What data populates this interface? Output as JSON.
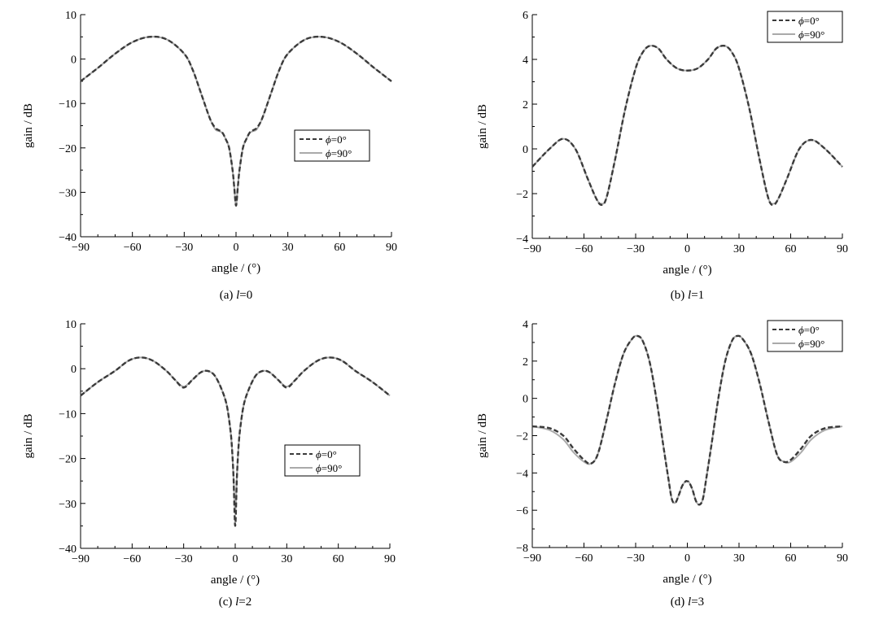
{
  "chart_data": [
    {
      "type": "line",
      "caption": {
        "prefix": "(a) ",
        "var": "l",
        "rest": "=0"
      },
      "xlabel": "angle / (°)",
      "ylabel": "gain / dB",
      "xlim": [
        -90,
        90
      ],
      "ylim": [
        -40,
        10
      ],
      "xticks": [
        -90,
        -60,
        -30,
        0,
        30,
        60,
        90
      ],
      "yticks": [
        -40,
        -30,
        -20,
        -10,
        0,
        10
      ],
      "tick_labels_x": [
        "−90",
        "−60",
        "−30",
        "0",
        "30",
        "60",
        "90"
      ],
      "tick_labels_y": [
        "−40",
        "−30",
        "−20",
        "−10",
        "0",
        "10"
      ],
      "legend": {
        "placement": "center-right",
        "entries": [
          {
            "sym": "ϕ",
            "rest": "=0°"
          },
          {
            "sym": "ϕ",
            "rest": "=90°"
          }
        ]
      },
      "series": [
        {
          "color": "#3a3a3a",
          "style": "dashed",
          "x": [
            -90,
            -80,
            -70,
            -60,
            -50,
            -40,
            -30,
            -25,
            -20,
            -15,
            -12,
            -10,
            -8,
            -6,
            -4,
            -2,
            -1,
            0,
            1,
            2,
            4,
            6,
            8,
            10,
            12,
            15,
            20,
            25,
            30,
            40,
            50,
            60,
            70,
            80,
            90
          ],
          "y": [
            -5,
            -2,
            1.2,
            3.8,
            5,
            4.4,
            1.2,
            -2.5,
            -8,
            -13.5,
            -15.5,
            -16,
            -16.5,
            -18,
            -20,
            -25,
            -29,
            -33,
            -29,
            -25,
            -20,
            -18,
            -16.5,
            -16,
            -15.5,
            -13.5,
            -8,
            -2.5,
            1.2,
            4.4,
            5,
            3.8,
            1.2,
            -2,
            -5
          ]
        },
        {
          "color": "#aaaaaa",
          "style": "solid",
          "x": [
            -90,
            -80,
            -70,
            -60,
            -50,
            -40,
            -30,
            -25,
            -20,
            -15,
            -12,
            -10,
            -8,
            -6,
            -4,
            -2,
            -1,
            0,
            1,
            2,
            4,
            6,
            8,
            10,
            12,
            15,
            20,
            25,
            30,
            40,
            50,
            60,
            70,
            80,
            90
          ],
          "y": [
            -5,
            -2,
            1.2,
            3.8,
            5,
            4.4,
            1.2,
            -2.5,
            -8,
            -13.5,
            -15.8,
            -16.2,
            -16.6,
            -18,
            -20,
            -25,
            -29,
            -33,
            -29,
            -25,
            -20,
            -18,
            -16.6,
            -16.2,
            -15.8,
            -13.5,
            -8,
            -2.5,
            1.2,
            4.4,
            5,
            3.8,
            1.2,
            -2,
            -5
          ]
        }
      ]
    },
    {
      "type": "line",
      "caption": {
        "prefix": "(b) ",
        "var": "l",
        "rest": "=1"
      },
      "xlabel": "angle / (°)",
      "ylabel": "gain / dB",
      "xlim": [
        -90,
        90
      ],
      "ylim": [
        -4,
        6
      ],
      "xticks": [
        -90,
        -60,
        -30,
        0,
        30,
        60,
        90
      ],
      "yticks": [
        -4,
        -2,
        0,
        2,
        4,
        6
      ],
      "tick_labels_x": [
        "−90",
        "−60",
        "−30",
        "0",
        "30",
        "60",
        "90"
      ],
      "tick_labels_y": [
        "−4",
        "−2",
        "0",
        "2",
        "4",
        "6"
      ],
      "legend": {
        "placement": "top-right",
        "entries": [
          {
            "sym": "ϕ",
            "rest": "=0°"
          },
          {
            "sym": "ϕ",
            "rest": "=90°"
          }
        ]
      },
      "series": [
        {
          "color": "#3a3a3a",
          "style": "dashed",
          "x": [
            -90,
            -80,
            -72,
            -65,
            -58,
            -53,
            -50,
            -47,
            -42,
            -36,
            -30,
            -26,
            -22,
            -17,
            -12,
            -6,
            0,
            6,
            12,
            17,
            22,
            26,
            30,
            36,
            42,
            47,
            50,
            53,
            58,
            65,
            72,
            80,
            90
          ],
          "y": [
            -0.8,
            0,
            0.45,
            0,
            -1.3,
            -2.2,
            -2.5,
            -2.2,
            -0.5,
            1.8,
            3.6,
            4.3,
            4.6,
            4.5,
            4.0,
            3.6,
            3.5,
            3.6,
            4.0,
            4.5,
            4.6,
            4.3,
            3.6,
            1.8,
            -0.5,
            -2.2,
            -2.5,
            -2.2,
            -1.3,
            0,
            0.4,
            0,
            -0.8
          ]
        },
        {
          "color": "#aaaaaa",
          "style": "solid",
          "x": [
            -90,
            -80,
            -72,
            -65,
            -58,
            -53,
            -50,
            -47,
            -42,
            -36,
            -30,
            -26,
            -22,
            -17,
            -12,
            -6,
            0,
            6,
            12,
            17,
            22,
            26,
            30,
            36,
            42,
            47,
            50,
            53,
            58,
            65,
            72,
            80,
            90
          ],
          "y": [
            -0.8,
            0,
            0.45,
            0,
            -1.3,
            -2.2,
            -2.45,
            -2.2,
            -0.5,
            1.8,
            3.6,
            4.3,
            4.6,
            4.5,
            4.0,
            3.6,
            3.5,
            3.6,
            4.0,
            4.5,
            4.6,
            4.3,
            3.6,
            1.8,
            -0.5,
            -2.2,
            -2.45,
            -2.2,
            -1.3,
            0,
            0.4,
            0,
            -0.8
          ]
        }
      ]
    },
    {
      "type": "line",
      "caption": {
        "prefix": "(c) ",
        "var": "l",
        "rest": "=2"
      },
      "xlabel": "angle / (°)",
      "ylabel": "gain / dB",
      "xlim": [
        -90,
        90
      ],
      "ylim": [
        -40,
        10
      ],
      "xticks": [
        -90,
        -60,
        -30,
        0,
        30,
        60,
        90
      ],
      "yticks": [
        -40,
        -30,
        -20,
        -10,
        0,
        10
      ],
      "tick_labels_x": [
        "−90",
        "−60",
        "−30",
        "0",
        "30",
        "60",
        "90"
      ],
      "tick_labels_y": [
        "−40",
        "−30",
        "−20",
        "−10",
        "0",
        "10"
      ],
      "legend": {
        "placement": "lower-right",
        "entries": [
          {
            "sym": "ϕ",
            "rest": "=0°"
          },
          {
            "sym": "ϕ",
            "rest": "=90°"
          }
        ]
      },
      "series": [
        {
          "color": "#3a3a3a",
          "style": "dashed",
          "x": [
            -90,
            -80,
            -70,
            -62,
            -55,
            -48,
            -40,
            -35,
            -30,
            -25,
            -20,
            -16,
            -12,
            -8,
            -5,
            -3,
            -2,
            -1,
            0,
            1,
            2,
            3,
            5,
            8,
            12,
            16,
            20,
            25,
            30,
            35,
            40,
            48,
            55,
            62,
            70,
            80,
            90
          ],
          "y": [
            -6,
            -3,
            -0.5,
            1.8,
            2.5,
            1.8,
            -0.5,
            -2.5,
            -4.2,
            -2.5,
            -0.8,
            -0.5,
            -1.5,
            -4.5,
            -8,
            -13,
            -17,
            -24,
            -35,
            -24,
            -17,
            -13,
            -8,
            -4.5,
            -1.5,
            -0.5,
            -0.8,
            -2.5,
            -4.2,
            -2.5,
            -0.5,
            1.8,
            2.5,
            1.8,
            -0.5,
            -3,
            -6
          ]
        },
        {
          "color": "#aaaaaa",
          "style": "solid",
          "x": [
            -90,
            -80,
            -70,
            -62,
            -55,
            -48,
            -40,
            -35,
            -30,
            -25,
            -20,
            -16,
            -12,
            -8,
            -5,
            -3,
            -2,
            -1,
            0,
            1,
            2,
            3,
            5,
            8,
            12,
            16,
            20,
            25,
            30,
            35,
            40,
            48,
            55,
            62,
            70,
            80,
            90
          ],
          "y": [
            -6,
            -3,
            -0.5,
            1.8,
            2.5,
            1.8,
            -0.5,
            -2.5,
            -4.0,
            -2.5,
            -0.8,
            -0.5,
            -1.5,
            -4.5,
            -8,
            -13,
            -17,
            -24,
            -32,
            -24,
            -17,
            -13,
            -8,
            -4.5,
            -1.5,
            -0.5,
            -0.8,
            -2.5,
            -4.0,
            -2.5,
            -0.5,
            1.8,
            2.5,
            1.8,
            -0.5,
            -3,
            -6
          ]
        }
      ]
    },
    {
      "type": "line",
      "caption": {
        "prefix": "(d) ",
        "var": "l",
        "rest": "=3"
      },
      "xlabel": "angle / (°)",
      "ylabel": "gain / dB",
      "xlim": [
        -90,
        90
      ],
      "ylim": [
        -8,
        4
      ],
      "xticks": [
        -90,
        -60,
        -30,
        0,
        30,
        60,
        90
      ],
      "yticks": [
        -8,
        -6,
        -4,
        -2,
        0,
        2,
        4
      ],
      "tick_labels_x": [
        "−90",
        "−60",
        "−30",
        "0",
        "30",
        "60",
        "90"
      ],
      "tick_labels_y": [
        "−8",
        "−6",
        "−4",
        "−2",
        "0",
        "2",
        "4"
      ],
      "legend": {
        "placement": "top-right",
        "entries": [
          {
            "sym": "ϕ",
            "rest": "=0°"
          },
          {
            "sym": "ϕ",
            "rest": "=90°"
          }
        ]
      },
      "series": [
        {
          "color": "#3a3a3a",
          "style": "dashed",
          "x": [
            -90,
            -80,
            -72,
            -66,
            -60,
            -56,
            -52,
            -47,
            -42,
            -37,
            -32,
            -29,
            -26,
            -22,
            -18,
            -14,
            -11,
            -9,
            -7,
            -5,
            -3,
            -1,
            0,
            1,
            3,
            5,
            7,
            9,
            11,
            14,
            18,
            22,
            26,
            29,
            32,
            37,
            42,
            47,
            52,
            56,
            60,
            66,
            72,
            80,
            90
          ],
          "y": [
            -1.5,
            -1.6,
            -2.0,
            -2.7,
            -3.3,
            -3.5,
            -3.0,
            -1.2,
            0.8,
            2.4,
            3.2,
            3.35,
            3.1,
            2.0,
            0.0,
            -2.5,
            -4.3,
            -5.4,
            -5.6,
            -5.2,
            -4.7,
            -4.45,
            -4.45,
            -4.5,
            -4.9,
            -5.5,
            -5.7,
            -5.4,
            -4.3,
            -2.5,
            0.0,
            2.0,
            3.1,
            3.35,
            3.2,
            2.4,
            0.8,
            -1.2,
            -3.0,
            -3.4,
            -3.3,
            -2.7,
            -2.0,
            -1.6,
            -1.5
          ]
        },
        {
          "color": "#aaaaaa",
          "style": "solid",
          "x": [
            -90,
            -80,
            -72,
            -66,
            -60,
            -56,
            -52,
            -47,
            -42,
            -37,
            -32,
            -29,
            -26,
            -22,
            -18,
            -14,
            -11,
            -9,
            -7,
            -5,
            -3,
            -1,
            0,
            1,
            3,
            5,
            7,
            9,
            11,
            14,
            18,
            22,
            26,
            29,
            32,
            37,
            42,
            47,
            52,
            56,
            60,
            66,
            72,
            80,
            90
          ],
          "y": [
            -1.5,
            -1.7,
            -2.2,
            -2.9,
            -3.4,
            -3.5,
            -3.0,
            -1.2,
            0.8,
            2.4,
            3.2,
            3.35,
            3.1,
            2.0,
            0.0,
            -2.5,
            -4.3,
            -5.4,
            -5.6,
            -5.2,
            -4.7,
            -4.45,
            -4.45,
            -4.5,
            -4.9,
            -5.5,
            -5.7,
            -5.4,
            -4.3,
            -2.5,
            0.0,
            2.0,
            3.1,
            3.35,
            3.2,
            2.4,
            0.8,
            -1.2,
            -3.0,
            -3.4,
            -3.4,
            -2.9,
            -2.2,
            -1.7,
            -1.5
          ]
        }
      ]
    }
  ]
}
